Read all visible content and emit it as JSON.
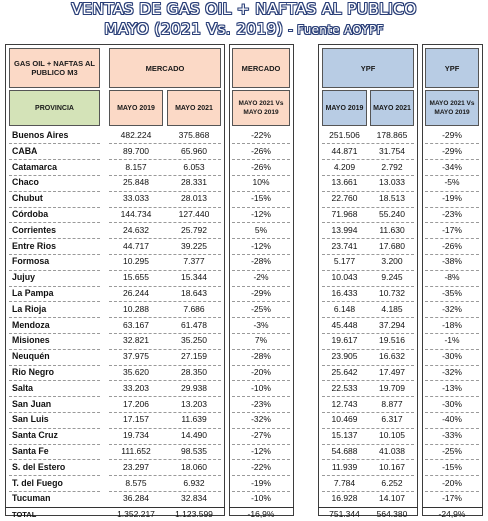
{
  "title": {
    "line1": "VENTAS DE GAS OIL + NAFTAS AL PUBLICO",
    "line2": "MAYO (2021 Vs. 2019)",
    "source": "- Fuente AOYPF"
  },
  "headers": {
    "main_label": "GAS OIL + NAFTAS AL PUBLICO M3",
    "provincia": "PROVINCIA",
    "mercado": "MERCADO",
    "mayo2019": "MAYO 2019",
    "mayo2021": "MAYO 2021",
    "mercado_var_title": "MERCADO",
    "var_label": "MAYO 2021 Vs MAYO 2019",
    "ypf": "YPF",
    "ypf_mayo2019": "MAYO 2019",
    "ypf_mayo2021": "MAYO 2021",
    "ypf_var_title": "YPF",
    "ypf_var_label": "MAYO 2021 Vs MAYO 2019"
  },
  "rows": [
    {
      "prov": "Buenos Aires",
      "m19": "482.224",
      "m21": "375.868",
      "mvar": "-22%",
      "y19": "251.506",
      "y21": "178.865",
      "yvar": "-29%"
    },
    {
      "prov": "CABA",
      "m19": "89.700",
      "m21": "65.960",
      "mvar": "-26%",
      "y19": "44.871",
      "y21": "31.754",
      "yvar": "-29%"
    },
    {
      "prov": "Catamarca",
      "m19": "8.157",
      "m21": "6.053",
      "mvar": "-26%",
      "y19": "4.209",
      "y21": "2.792",
      "yvar": "-34%"
    },
    {
      "prov": "Chaco",
      "m19": "25.848",
      "m21": "28.331",
      "mvar": "10%",
      "y19": "13.661",
      "y21": "13.033",
      "yvar": "-5%"
    },
    {
      "prov": "Chubut",
      "m19": "33.033",
      "m21": "28.013",
      "mvar": "-15%",
      "y19": "22.760",
      "y21": "18.513",
      "yvar": "-19%"
    },
    {
      "prov": "Córdoba",
      "m19": "144.734",
      "m21": "127.440",
      "mvar": "-12%",
      "y19": "71.968",
      "y21": "55.240",
      "yvar": "-23%"
    },
    {
      "prov": "Corrientes",
      "m19": "24.632",
      "m21": "25.792",
      "mvar": "5%",
      "y19": "13.994",
      "y21": "11.630",
      "yvar": "-17%"
    },
    {
      "prov": "Entre Rios",
      "m19": "44.717",
      "m21": "39.225",
      "mvar": "-12%",
      "y19": "23.741",
      "y21": "17.680",
      "yvar": "-26%"
    },
    {
      "prov": "Formosa",
      "m19": "10.295",
      "m21": "7.377",
      "mvar": "-28%",
      "y19": "5.177",
      "y21": "3.200",
      "yvar": "-38%"
    },
    {
      "prov": "Jujuy",
      "m19": "15.655",
      "m21": "15.344",
      "mvar": "-2%",
      "y19": "10.043",
      "y21": "9.245",
      "yvar": "-8%"
    },
    {
      "prov": "La Pampa",
      "m19": "26.244",
      "m21": "18.643",
      "mvar": "-29%",
      "y19": "16.433",
      "y21": "10.732",
      "yvar": "-35%"
    },
    {
      "prov": "La Rioja",
      "m19": "10.288",
      "m21": "7.686",
      "mvar": "-25%",
      "y19": "6.148",
      "y21": "4.185",
      "yvar": "-32%"
    },
    {
      "prov": "Mendoza",
      "m19": "63.167",
      "m21": "61.478",
      "mvar": "-3%",
      "y19": "45.448",
      "y21": "37.294",
      "yvar": "-18%"
    },
    {
      "prov": "Misiones",
      "m19": "32.821",
      "m21": "35.250",
      "mvar": "7%",
      "y19": "19.617",
      "y21": "19.516",
      "yvar": "-1%"
    },
    {
      "prov": "Neuquén",
      "m19": "37.975",
      "m21": "27.159",
      "mvar": "-28%",
      "y19": "23.905",
      "y21": "16.632",
      "yvar": "-30%"
    },
    {
      "prov": "Rio Negro",
      "m19": "35.620",
      "m21": "28.350",
      "mvar": "-20%",
      "y19": "25.642",
      "y21": "17.497",
      "yvar": "-32%"
    },
    {
      "prov": "Salta",
      "m19": "33.203",
      "m21": "29.938",
      "mvar": "-10%",
      "y19": "22.533",
      "y21": "19.709",
      "yvar": "-13%"
    },
    {
      "prov": "San Juan",
      "m19": "17.206",
      "m21": "13.203",
      "mvar": "-23%",
      "y19": "12.743",
      "y21": "8.877",
      "yvar": "-30%"
    },
    {
      "prov": "San Luis",
      "m19": "17.157",
      "m21": "11.639",
      "mvar": "-32%",
      "y19": "10.469",
      "y21": "6.317",
      "yvar": "-40%"
    },
    {
      "prov": "Santa Cruz",
      "m19": "19.734",
      "m21": "14.490",
      "mvar": "-27%",
      "y19": "15.137",
      "y21": "10.105",
      "yvar": "-33%"
    },
    {
      "prov": "Santa Fe",
      "m19": "111.652",
      "m21": "98.535",
      "mvar": "-12%",
      "y19": "54.688",
      "y21": "41.038",
      "yvar": "-25%"
    },
    {
      "prov": "S. del Estero",
      "m19": "23.297",
      "m21": "18.060",
      "mvar": "-22%",
      "y19": "11.939",
      "y21": "10.167",
      "yvar": "-15%"
    },
    {
      "prov": "T. del Fuego",
      "m19": "8.575",
      "m21": "6.932",
      "mvar": "-19%",
      "y19": "7.784",
      "y21": "6.252",
      "yvar": "-20%"
    },
    {
      "prov": "Tucuman",
      "m19": "36.284",
      "m21": "32.834",
      "mvar": "-10%",
      "y19": "16.928",
      "y21": "14.107",
      "yvar": "-17%"
    }
  ],
  "total": {
    "prov": "TOTAL",
    "m19": "1.352.217",
    "m21": "1.123.599",
    "mvar": "-16,9%",
    "y19": "751.344",
    "y21": "564.380",
    "yvar": "-24,9%"
  },
  "colors": {
    "orange": "#fbd9c6",
    "green": "#d4e3b8",
    "blue": "#b8cce4",
    "title_outline": "#2a3f78"
  }
}
